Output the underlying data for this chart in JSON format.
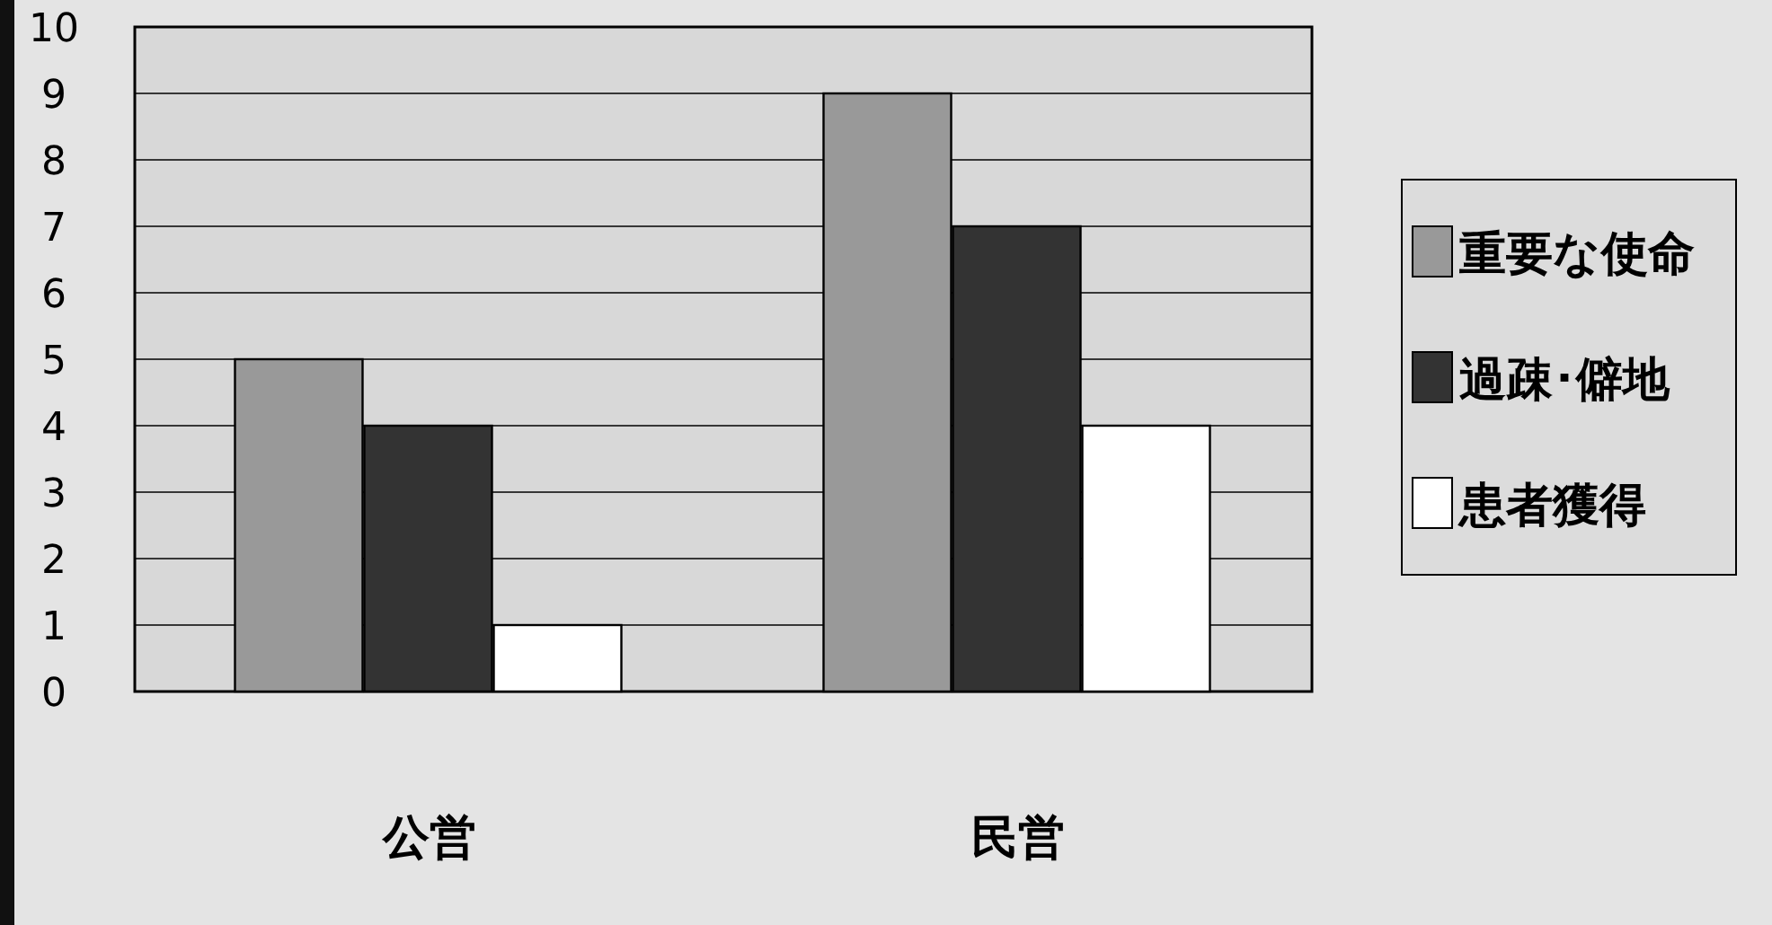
{
  "chart_data": {
    "type": "bar",
    "categories": [
      "公営",
      "民営"
    ],
    "series": [
      {
        "name": "重要な使命",
        "color": "#999999",
        "values": [
          5,
          9
        ]
      },
      {
        "name": "過疎･僻地",
        "color": "#333333",
        "values": [
          4,
          7
        ]
      },
      {
        "name": "患者獲得",
        "color": "#ffffff",
        "values": [
          1,
          4
        ]
      }
    ],
    "ylim": [
      0,
      10
    ],
    "yticks": [
      0,
      1,
      2,
      3,
      4,
      5,
      6,
      7,
      8,
      9,
      10
    ],
    "grid": "y",
    "legend": "right"
  }
}
